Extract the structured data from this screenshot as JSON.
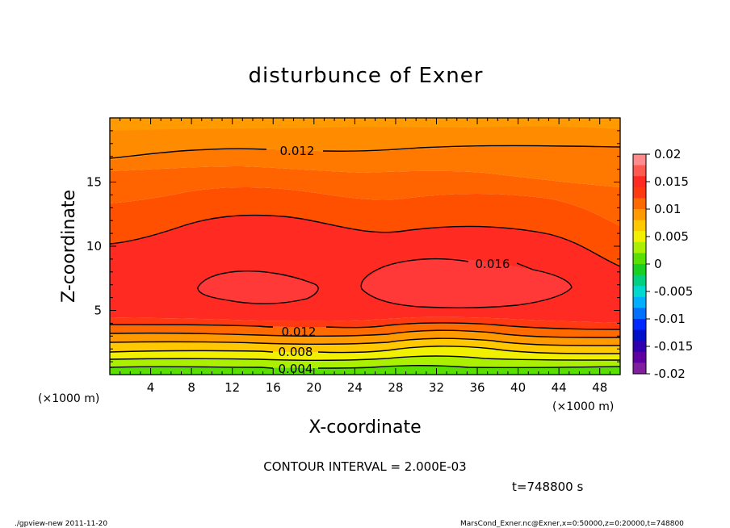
{
  "chart_data": {
    "type": "contour",
    "title": "disturbunce of Exner",
    "xlabel": "X-coordinate",
    "ylabel": "Z-coordinate",
    "x_unit": "(×1000 m)",
    "z_unit": "(×1000 m)",
    "xlim": [
      0,
      50
    ],
    "ylim": [
      0,
      20
    ],
    "x_ticks": [
      4,
      8,
      12,
      16,
      20,
      24,
      28,
      32,
      36,
      40,
      44,
      48
    ],
    "y_ticks": [
      5,
      10,
      15
    ],
    "contour_interval_label": "CONTOUR INTERVAL = 2.000E-03",
    "contour_labels": [
      "0.012",
      "0.016",
      "0.012",
      "0.008",
      "0.004"
    ],
    "colorbar": {
      "ticks": [
        "0.02",
        "0.015",
        "0.01",
        "0.005",
        "0",
        "-0.005",
        "-0.01",
        "-0.015",
        "-0.02"
      ],
      "colors": [
        "#ff8c8c",
        "#ff5a50",
        "#ff2a22",
        "#ff3a10",
        "#ff6a00",
        "#ff9a00",
        "#ffc800",
        "#f0f000",
        "#aaf000",
        "#5ae000",
        "#18d020",
        "#00d080",
        "#00d8d0",
        "#00b0ff",
        "#0070ff",
        "#0028ff",
        "#0010c8",
        "#3000b0",
        "#6000a0",
        "#8020a0"
      ]
    },
    "time_label": "t=748800 s"
  },
  "footer": {
    "left": "./gpview-new  2011-11-20",
    "right": "MarsCond_Exner.nc@Exner,x=0:50000,z=0:20000,t=748800"
  }
}
